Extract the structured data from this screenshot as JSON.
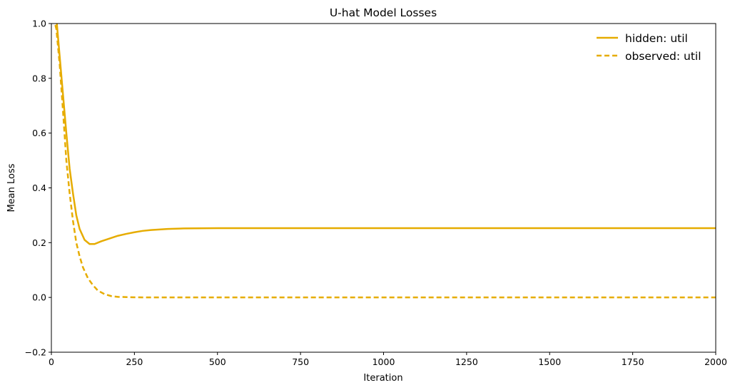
{
  "chart_data": {
    "type": "line",
    "title": "U-hat Model Losses",
    "xlabel": "Iteration",
    "ylabel": "Mean Loss",
    "xlim": [
      0,
      2000
    ],
    "ylim": [
      -0.2,
      1.0
    ],
    "xticks": [
      0,
      250,
      500,
      750,
      1000,
      1250,
      1500,
      1750,
      2000
    ],
    "yticks": [
      -0.2,
      0.0,
      0.2,
      0.4,
      0.6,
      0.8,
      1.0
    ],
    "xtick_labels": [
      "0",
      "250",
      "500",
      "750",
      "1000",
      "1250",
      "1500",
      "1750",
      "2000"
    ],
    "ytick_labels": [
      "−0.2",
      "0.0",
      "0.2",
      "0.4",
      "0.6",
      "0.8",
      "1.0"
    ],
    "grid": false,
    "legend_position": "top-right",
    "series": [
      {
        "name": "hidden: util",
        "color": "#e6ac00",
        "style": "solid",
        "x": [
          0,
          15,
          25,
          35,
          45,
          55,
          65,
          75,
          85,
          100,
          115,
          130,
          150,
          175,
          200,
          225,
          250,
          275,
          300,
          350,
          400,
          500,
          600,
          750,
          1000,
          1250,
          1500,
          1750,
          2000
        ],
        "y": [
          1.1,
          1.02,
          0.88,
          0.74,
          0.6,
          0.47,
          0.38,
          0.3,
          0.25,
          0.21,
          0.195,
          0.195,
          0.205,
          0.215,
          0.225,
          0.232,
          0.238,
          0.243,
          0.246,
          0.25,
          0.252,
          0.253,
          0.253,
          0.253,
          0.253,
          0.253,
          0.253,
          0.253,
          0.253
        ]
      },
      {
        "name": "observed: util",
        "color": "#e6ac00",
        "style": "dashed",
        "x": [
          0,
          15,
          25,
          35,
          45,
          55,
          65,
          75,
          85,
          95,
          110,
          125,
          140,
          160,
          180,
          200,
          250,
          300,
          500,
          1000,
          1500,
          2000
        ],
        "y": [
          1.05,
          0.98,
          0.85,
          0.68,
          0.5,
          0.38,
          0.28,
          0.2,
          0.15,
          0.11,
          0.07,
          0.045,
          0.025,
          0.012,
          0.005,
          0.002,
          0.0005,
          0.0,
          0.0,
          0.0,
          0.0,
          0.0
        ]
      }
    ]
  }
}
